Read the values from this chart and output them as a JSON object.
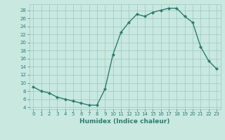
{
  "x": [
    0,
    1,
    2,
    3,
    4,
    5,
    6,
    7,
    8,
    9,
    10,
    11,
    12,
    13,
    14,
    15,
    16,
    17,
    18,
    19,
    20,
    21,
    22,
    23
  ],
  "y": [
    9,
    8,
    7.5,
    6.5,
    6,
    5.5,
    5,
    4.5,
    4.5,
    8.5,
    17,
    22.5,
    25,
    27,
    26.5,
    27.5,
    28,
    28.5,
    28.5,
    26.5,
    25,
    19,
    15.5,
    13.5
  ],
  "line_color": "#2e7d6e",
  "marker": "D",
  "marker_size": 2,
  "bg_color": "#c8e8e0",
  "grid_color": "#9ec8be",
  "xlabel": "Humidex (Indice chaleur)",
  "xlim": [
    -0.5,
    23.5
  ],
  "ylim": [
    3.5,
    29.5
  ],
  "yticks": [
    4,
    6,
    8,
    10,
    12,
    14,
    16,
    18,
    20,
    22,
    24,
    26,
    28
  ],
  "xticks": [
    0,
    1,
    2,
    3,
    4,
    5,
    6,
    7,
    8,
    9,
    10,
    11,
    12,
    13,
    14,
    15,
    16,
    17,
    18,
    19,
    20,
    21,
    22,
    23
  ],
  "tick_fontsize": 5,
  "xlabel_fontsize": 6.5,
  "linewidth": 1.0
}
